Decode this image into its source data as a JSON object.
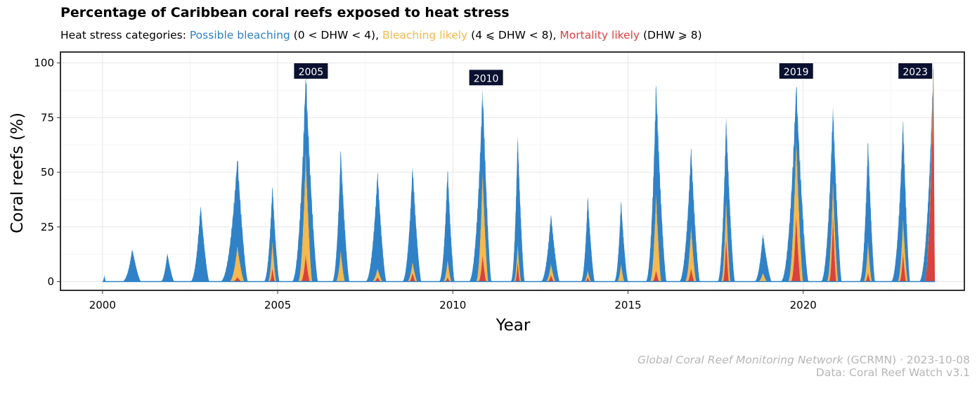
{
  "title": "Percentage of Caribbean coral reefs exposed to heat stress",
  "subtitle": {
    "prefix": "Heat stress categories: ",
    "cat1": "Possible bleaching",
    "cat1_range": " (0 < DHW < 4), ",
    "cat2": "Bleaching likely",
    "cat2_range": " (4 ⩽ DHW < 8), ",
    "cat3": "Mortality likely",
    "cat3_range": " (DHW ⩾ 8)"
  },
  "caption": {
    "org": "Global Coral Reef Monitoring Network",
    "org_suffix": " (GCRMN) · 2023-10-08",
    "data_source": "Data: Coral Reef Watch v3.1"
  },
  "chart_data": {
    "type": "area",
    "xlabel": "Year",
    "ylabel": "Coral reefs (%)",
    "xlim": [
      1998.8,
      2024.6
    ],
    "ylim": [
      -4,
      105
    ],
    "x_ticks": [
      2000,
      2005,
      2010,
      2015,
      2020
    ],
    "y_ticks": [
      0,
      25,
      50,
      75,
      100
    ],
    "grid": true,
    "colors": {
      "possible_bleaching": "#2f82c8",
      "bleaching_likely": "#f5b94e",
      "mortality_likely": "#d9423e"
    },
    "stacking": "overlapping (cumulative thresholds)",
    "annual_peaks": [
      {
        "year": 2000,
        "peak_x": 2000.05,
        "start": 2000.0,
        "end": 2000.1,
        "possible": 3,
        "likely": 0,
        "mortality": 0
      },
      {
        "year": 2000,
        "peak_x": 2000.85,
        "start": 2000.55,
        "end": 2001.1,
        "possible": 15,
        "likely": 0,
        "mortality": 0
      },
      {
        "year": 2001,
        "peak_x": 2001.85,
        "start": 2001.65,
        "end": 2002.05,
        "possible": 13,
        "likely": 0,
        "mortality": 0
      },
      {
        "year": 2002,
        "peak_x": 2002.8,
        "start": 2002.5,
        "end": 2003.05,
        "possible": 35,
        "likely": 0,
        "mortality": 0
      },
      {
        "year": 2003,
        "peak_x": 2003.85,
        "start": 2003.35,
        "end": 2004.15,
        "possible": 57,
        "likely": 16,
        "mortality": 2
      },
      {
        "year": 2004,
        "peak_x": 2004.85,
        "start": 2004.6,
        "end": 2005.05,
        "possible": 44,
        "likely": 18,
        "mortality": 6
      },
      {
        "year": 2005,
        "peak_x": 2005.8,
        "start": 2005.4,
        "end": 2006.15,
        "possible": 95,
        "likely": 58,
        "mortality": 12
      },
      {
        "year": 2006,
        "peak_x": 2006.8,
        "start": 2006.55,
        "end": 2007.05,
        "possible": 60,
        "likely": 14,
        "mortality": 0
      },
      {
        "year": 2007,
        "peak_x": 2007.85,
        "start": 2007.5,
        "end": 2008.1,
        "possible": 50,
        "likely": 6,
        "mortality": 2
      },
      {
        "year": 2008,
        "peak_x": 2008.85,
        "start": 2008.55,
        "end": 2009.1,
        "possible": 53,
        "likely": 9,
        "mortality": 4
      },
      {
        "year": 2009,
        "peak_x": 2009.85,
        "start": 2009.6,
        "end": 2010.05,
        "possible": 52,
        "likely": 10,
        "mortality": 2
      },
      {
        "year": 2010,
        "peak_x": 2010.85,
        "start": 2010.45,
        "end": 2011.1,
        "possible": 89,
        "likely": 50,
        "mortality": 12
      },
      {
        "year": 2011,
        "peak_x": 2011.85,
        "start": 2011.65,
        "end": 2012.05,
        "possible": 67,
        "likely": 17,
        "mortality": 9
      },
      {
        "year": 2012,
        "peak_x": 2012.8,
        "start": 2012.5,
        "end": 2013.05,
        "possible": 31,
        "likely": 8,
        "mortality": 3
      },
      {
        "year": 2013,
        "peak_x": 2013.85,
        "start": 2013.65,
        "end": 2014.05,
        "possible": 39,
        "likely": 5,
        "mortality": 2
      },
      {
        "year": 2014,
        "peak_x": 2014.8,
        "start": 2014.6,
        "end": 2015.0,
        "possible": 37,
        "likely": 8,
        "mortality": 0
      },
      {
        "year": 2015,
        "peak_x": 2015.8,
        "start": 2015.5,
        "end": 2016.1,
        "possible": 90,
        "likely": 40,
        "mortality": 5
      },
      {
        "year": 2016,
        "peak_x": 2016.8,
        "start": 2016.45,
        "end": 2017.05,
        "possible": 61,
        "likely": 25,
        "mortality": 6
      },
      {
        "year": 2017,
        "peak_x": 2017.8,
        "start": 2017.55,
        "end": 2018.05,
        "possible": 75,
        "likely": 38,
        "mortality": 20
      },
      {
        "year": 2018,
        "peak_x": 2018.85,
        "start": 2018.6,
        "end": 2019.1,
        "possible": 22,
        "likely": 4,
        "mortality": 0
      },
      {
        "year": 2019,
        "peak_x": 2019.8,
        "start": 2019.35,
        "end": 2020.15,
        "possible": 90,
        "likely": 65,
        "mortality": 30
      },
      {
        "year": 2020,
        "peak_x": 2020.85,
        "start": 2020.5,
        "end": 2021.1,
        "possible": 80,
        "likely": 45,
        "mortality": 29
      },
      {
        "year": 2021,
        "peak_x": 2021.85,
        "start": 2021.6,
        "end": 2022.05,
        "possible": 65,
        "likely": 18,
        "mortality": 4
      },
      {
        "year": 2022,
        "peak_x": 2022.85,
        "start": 2022.5,
        "end": 2023.05,
        "possible": 74,
        "likely": 28,
        "mortality": 13
      },
      {
        "year": 2023,
        "peak_x": 2023.72,
        "start": 2023.3,
        "end": 2023.76,
        "possible": 100,
        "likely": 100,
        "mortality": 90
      }
    ],
    "annotations": [
      {
        "label": "2005",
        "x": 2005.95,
        "y": 96
      },
      {
        "label": "2010",
        "x": 2010.95,
        "y": 93
      },
      {
        "label": "2019",
        "x": 2019.8,
        "y": 96
      },
      {
        "label": "2023",
        "x": 2023.2,
        "y": 96
      }
    ]
  }
}
